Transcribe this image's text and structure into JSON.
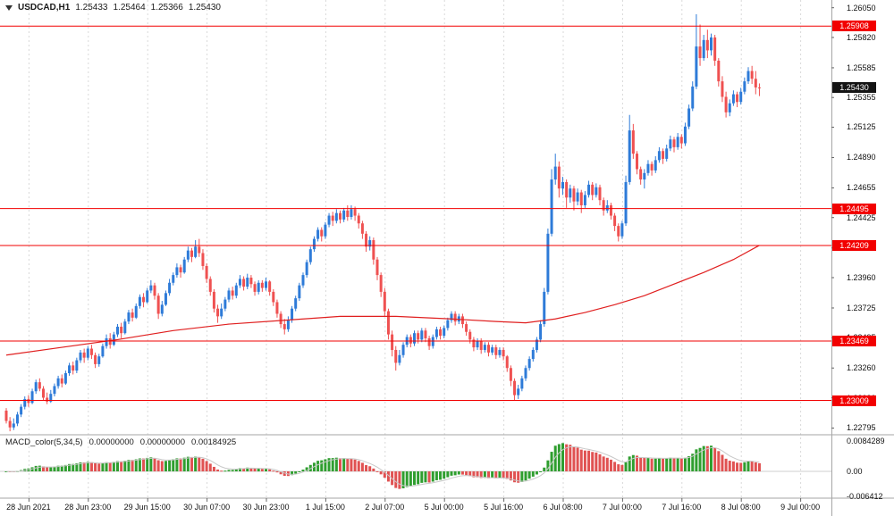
{
  "header": {
    "symbol_period": "USDCAD,H1",
    "open": "1.25433",
    "high": "1.25464",
    "low": "1.25366",
    "close": "1.25430"
  },
  "price_axis": {
    "ticks": [
      "1.26050",
      "1.25820",
      "1.25585",
      "1.25355",
      "1.25125",
      "1.24890",
      "1.24655",
      "1.24425",
      "1.24190",
      "1.23960",
      "1.23725",
      "1.23495",
      "1.23260",
      "1.23030",
      "1.22795"
    ],
    "current_price": 1.2543,
    "current_price_label": "1.25430"
  },
  "time_axis": {
    "labels": [
      {
        "text": "28 Jun 2021",
        "candle_index": 6
      },
      {
        "text": "28 Jun 23:00",
        "candle_index": 22
      },
      {
        "text": "29 Jun 15:00",
        "candle_index": 38
      },
      {
        "text": "30 Jun 07:00",
        "candle_index": 54
      },
      {
        "text": "30 Jun 23:00",
        "candle_index": 70
      },
      {
        "text": "1 Jul 15:00",
        "candle_index": 86
      },
      {
        "text": "2 Jul 07:00",
        "candle_index": 102
      },
      {
        "text": "5 Jul 00:00",
        "candle_index": 118
      },
      {
        "text": "5 Jul 16:00",
        "candle_index": 134
      },
      {
        "text": "6 Jul 08:00",
        "candle_index": 150
      },
      {
        "text": "7 Jul 00:00",
        "candle_index": 166
      },
      {
        "text": "7 Jul 16:00",
        "candle_index": 182
      },
      {
        "text": "8 Jul 08:00",
        "candle_index": 198
      },
      {
        "text": "9 Jul 00:00",
        "candle_index": 214
      }
    ]
  },
  "macd": {
    "name": "MACD_color(5,34,5)",
    "values": [
      "0.00000000",
      "0.00000000",
      "0.00184925"
    ],
    "fast": 5,
    "slow": 34,
    "signal": 5,
    "axis_max": 0.0084289,
    "axis_min": -0.006412,
    "axis_max_label": "0.0084289",
    "axis_zero_label": "0.00",
    "axis_min_label": "-0.006412"
  },
  "colors": {
    "background": "#ffffff",
    "bull": "#2e7bd8",
    "bear": "#ef5151",
    "level_line": "#f20000",
    "level_tag_bg": "#f20000",
    "current_tag_bg": "#141414",
    "ma_line": "#e01f1f",
    "macd_up": "#2f9e2f",
    "macd_down": "#e05252",
    "macd_signal": "#c8c8c8",
    "grid": "#d9d9d9",
    "panel_border": "#a6a6a6",
    "axis_text": "#111111"
  },
  "chart_data": {
    "type": "candlestick",
    "title": "USDCAD H1",
    "symbol": "USDCAD",
    "timeframe": "H1",
    "visible_price_range": [
      1.22795,
      1.2605
    ],
    "price_levels": [
      {
        "value": 1.25908,
        "label": "1.25908"
      },
      {
        "value": 1.24495,
        "label": "1.24495"
      },
      {
        "value": 1.24209,
        "label": "1.24209"
      },
      {
        "value": 1.23469,
        "label": "1.23469"
      },
      {
        "value": 1.23009,
        "label": "1.23009"
      }
    ],
    "candles": [
      [
        1.2293,
        1.2295,
        1.2283,
        1.2285
      ],
      [
        1.2285,
        1.2288,
        1.2277,
        1.228
      ],
      [
        1.228,
        1.2287,
        1.2278,
        1.2283
      ],
      [
        1.2283,
        1.2292,
        1.2281,
        1.229
      ],
      [
        1.229,
        1.2298,
        1.2288,
        1.2296
      ],
      [
        1.2296,
        1.2304,
        1.2294,
        1.2302
      ],
      [
        1.2302,
        1.2305,
        1.2296,
        1.2299
      ],
      [
        1.2299,
        1.231,
        1.2298,
        1.2308
      ],
      [
        1.2308,
        1.2317,
        1.2306,
        1.2315
      ],
      [
        1.2315,
        1.2318,
        1.2308,
        1.231
      ],
      [
        1.231,
        1.2312,
        1.2301,
        1.2303
      ],
      [
        1.2303,
        1.2307,
        1.2298,
        1.23
      ],
      [
        1.23,
        1.2309,
        1.2299,
        1.2306
      ],
      [
        1.2306,
        1.2314,
        1.2304,
        1.2312
      ],
      [
        1.2312,
        1.232,
        1.231,
        1.2318
      ],
      [
        1.2318,
        1.2321,
        1.2311,
        1.2314
      ],
      [
        1.2314,
        1.2324,
        1.2313,
        1.2322
      ],
      [
        1.2322,
        1.233,
        1.232,
        1.2328
      ],
      [
        1.2328,
        1.2331,
        1.2321,
        1.2324
      ],
      [
        1.2324,
        1.2334,
        1.2322,
        1.2332
      ],
      [
        1.2332,
        1.234,
        1.233,
        1.2338
      ],
      [
        1.2338,
        1.2341,
        1.233,
        1.2334
      ],
      [
        1.2334,
        1.2343,
        1.2332,
        1.2341
      ],
      [
        1.2341,
        1.2344,
        1.2333,
        1.2336
      ],
      [
        1.2336,
        1.2338,
        1.2326,
        1.2329
      ],
      [
        1.2329,
        1.2337,
        1.2327,
        1.2335
      ],
      [
        1.2335,
        1.2345,
        1.2334,
        1.2343
      ],
      [
        1.2343,
        1.2352,
        1.2341,
        1.2349
      ],
      [
        1.2349,
        1.2353,
        1.2341,
        1.2344
      ],
      [
        1.2344,
        1.2354,
        1.2343,
        1.2352
      ],
      [
        1.2352,
        1.236,
        1.235,
        1.2358
      ],
      [
        1.2358,
        1.2361,
        1.2349,
        1.2353
      ],
      [
        1.2353,
        1.2364,
        1.2352,
        1.2362
      ],
      [
        1.2362,
        1.2371,
        1.236,
        1.2369
      ],
      [
        1.2369,
        1.2372,
        1.2362,
        1.2365
      ],
      [
        1.2365,
        1.2376,
        1.2364,
        1.2374
      ],
      [
        1.2374,
        1.2383,
        1.2372,
        1.2381
      ],
      [
        1.2381,
        1.2384,
        1.2373,
        1.2377
      ],
      [
        1.2377,
        1.2388,
        1.2376,
        1.2386
      ],
      [
        1.2386,
        1.2394,
        1.2384,
        1.239
      ],
      [
        1.239,
        1.2392,
        1.2379,
        1.2382
      ],
      [
        1.2382,
        1.2384,
        1.2364,
        1.2368
      ],
      [
        1.2368,
        1.2378,
        1.2366,
        1.2375
      ],
      [
        1.2375,
        1.2386,
        1.2374,
        1.2384
      ],
      [
        1.2384,
        1.2395,
        1.2382,
        1.2392
      ],
      [
        1.2392,
        1.24,
        1.239,
        1.2398
      ],
      [
        1.2398,
        1.2407,
        1.2396,
        1.2404
      ],
      [
        1.2404,
        1.2406,
        1.2396,
        1.24
      ],
      [
        1.24,
        1.2412,
        1.2399,
        1.241
      ],
      [
        1.241,
        1.242,
        1.2408,
        1.2417
      ],
      [
        1.2417,
        1.2419,
        1.2408,
        1.2412
      ],
      [
        1.2412,
        1.2425,
        1.2411,
        1.242
      ],
      [
        1.242,
        1.2426,
        1.2412,
        1.2415
      ],
      [
        1.2415,
        1.2418,
        1.2402,
        1.2405
      ],
      [
        1.2405,
        1.2407,
        1.2392,
        1.2395
      ],
      [
        1.2395,
        1.2397,
        1.2382,
        1.2385
      ],
      [
        1.2385,
        1.2387,
        1.2369,
        1.2372
      ],
      [
        1.2372,
        1.2375,
        1.2361,
        1.2366
      ],
      [
        1.2366,
        1.2376,
        1.2364,
        1.2372
      ],
      [
        1.2372,
        1.2381,
        1.237,
        1.2379
      ],
      [
        1.2379,
        1.2388,
        1.2377,
        1.2386
      ],
      [
        1.2386,
        1.2389,
        1.2379,
        1.2382
      ],
      [
        1.2382,
        1.2392,
        1.238,
        1.239
      ],
      [
        1.239,
        1.2398,
        1.2388,
        1.2395
      ],
      [
        1.2395,
        1.2397,
        1.2386,
        1.2389
      ],
      [
        1.2389,
        1.2399,
        1.2387,
        1.2396
      ],
      [
        1.2396,
        1.2398,
        1.2388,
        1.2391
      ],
      [
        1.2391,
        1.2393,
        1.2382,
        1.2385
      ],
      [
        1.2385,
        1.2394,
        1.2383,
        1.2392
      ],
      [
        1.2392,
        1.2394,
        1.2385,
        1.2388
      ],
      [
        1.2388,
        1.2396,
        1.2386,
        1.2393
      ],
      [
        1.2393,
        1.2394,
        1.2382,
        1.2385
      ],
      [
        1.2385,
        1.2387,
        1.2374,
        1.2377
      ],
      [
        1.2377,
        1.2379,
        1.2365,
        1.2368
      ],
      [
        1.2368,
        1.237,
        1.2357,
        1.236
      ],
      [
        1.236,
        1.2364,
        1.2352,
        1.2356
      ],
      [
        1.2356,
        1.2366,
        1.2354,
        1.2363
      ],
      [
        1.2363,
        1.2374,
        1.2361,
        1.2372
      ],
      [
        1.2372,
        1.2382,
        1.237,
        1.238
      ],
      [
        1.238,
        1.2392,
        1.2378,
        1.239
      ],
      [
        1.239,
        1.24,
        1.2388,
        1.2398
      ],
      [
        1.2398,
        1.241,
        1.2396,
        1.2408
      ],
      [
        1.2408,
        1.242,
        1.2406,
        1.2418
      ],
      [
        1.2418,
        1.2428,
        1.2416,
        1.2426
      ],
      [
        1.2426,
        1.2435,
        1.2424,
        1.2433
      ],
      [
        1.2433,
        1.2435,
        1.2424,
        1.2428
      ],
      [
        1.2428,
        1.2439,
        1.2426,
        1.2437
      ],
      [
        1.2437,
        1.2446,
        1.2435,
        1.2444
      ],
      [
        1.2444,
        1.2447,
        1.2436,
        1.244
      ],
      [
        1.244,
        1.2449,
        1.2438,
        1.2446
      ],
      [
        1.2446,
        1.2448,
        1.2438,
        1.2441
      ],
      [
        1.2441,
        1.245,
        1.2439,
        1.2448
      ],
      [
        1.2448,
        1.2452,
        1.244,
        1.2443
      ],
      [
        1.2443,
        1.2452,
        1.2441,
        1.2449
      ],
      [
        1.2449,
        1.2451,
        1.244,
        1.2444
      ],
      [
        1.2444,
        1.2446,
        1.2434,
        1.2438
      ],
      [
        1.2438,
        1.244,
        1.2426,
        1.243
      ],
      [
        1.243,
        1.2432,
        1.2416,
        1.242
      ],
      [
        1.242,
        1.2428,
        1.2417,
        1.2425
      ],
      [
        1.2425,
        1.2427,
        1.2406,
        1.241
      ],
      [
        1.241,
        1.2412,
        1.2394,
        1.2398
      ],
      [
        1.2398,
        1.24,
        1.2381,
        1.2385
      ],
      [
        1.2385,
        1.2388,
        1.2366,
        1.237
      ],
      [
        1.237,
        1.2372,
        1.2348,
        1.2352
      ],
      [
        1.2352,
        1.2355,
        1.2335,
        1.234
      ],
      [
        1.234,
        1.2343,
        1.2324,
        1.233
      ],
      [
        1.233,
        1.234,
        1.2328,
        1.2336
      ],
      [
        1.2336,
        1.2346,
        1.2334,
        1.2344
      ],
      [
        1.2344,
        1.2352,
        1.2342,
        1.235
      ],
      [
        1.235,
        1.2352,
        1.2342,
        1.2345
      ],
      [
        1.2345,
        1.2355,
        1.2343,
        1.2353
      ],
      [
        1.2353,
        1.2355,
        1.2345,
        1.2348
      ],
      [
        1.2348,
        1.2357,
        1.2346,
        1.2355
      ],
      [
        1.2355,
        1.2357,
        1.2346,
        1.2349
      ],
      [
        1.2349,
        1.2351,
        1.234,
        1.2343
      ],
      [
        1.2343,
        1.2352,
        1.2341,
        1.235
      ],
      [
        1.235,
        1.2358,
        1.2348,
        1.2356
      ],
      [
        1.2356,
        1.2358,
        1.2348,
        1.2351
      ],
      [
        1.2351,
        1.2359,
        1.2349,
        1.2357
      ],
      [
        1.2357,
        1.2365,
        1.2355,
        1.2363
      ],
      [
        1.2363,
        1.237,
        1.2361,
        1.2368
      ],
      [
        1.2368,
        1.237,
        1.2359,
        1.2362
      ],
      [
        1.2362,
        1.2368,
        1.236,
        1.2366
      ],
      [
        1.2366,
        1.2368,
        1.2357,
        1.236
      ],
      [
        1.236,
        1.2362,
        1.2351,
        1.2354
      ],
      [
        1.2354,
        1.2356,
        1.2345,
        1.2348
      ],
      [
        1.2348,
        1.235,
        1.2339,
        1.2342
      ],
      [
        1.2342,
        1.2349,
        1.234,
        1.2347
      ],
      [
        1.2347,
        1.2349,
        1.2337,
        1.234
      ],
      [
        1.234,
        1.2346,
        1.2338,
        1.2344
      ],
      [
        1.2344,
        1.2346,
        1.2335,
        1.2338
      ],
      [
        1.2338,
        1.2344,
        1.2336,
        1.2342
      ],
      [
        1.2342,
        1.2344,
        1.2333,
        1.2336
      ],
      [
        1.2336,
        1.2342,
        1.2334,
        1.234
      ],
      [
        1.234,
        1.2342,
        1.2332,
        1.2335
      ],
      [
        1.2335,
        1.2336,
        1.2323,
        1.2326
      ],
      [
        1.2326,
        1.2328,
        1.2312,
        1.2316
      ],
      [
        1.2316,
        1.2318,
        1.2301,
        1.2305
      ],
      [
        1.2305,
        1.2313,
        1.2302,
        1.231
      ],
      [
        1.231,
        1.232,
        1.2308,
        1.2318
      ],
      [
        1.2318,
        1.2328,
        1.2316,
        1.2326
      ],
      [
        1.2326,
        1.2335,
        1.2324,
        1.2333
      ],
      [
        1.2333,
        1.2342,
        1.2331,
        1.234
      ],
      [
        1.234,
        1.235,
        1.2338,
        1.2348
      ],
      [
        1.2348,
        1.2363,
        1.2346,
        1.236
      ],
      [
        1.236,
        1.2388,
        1.2358,
        1.2385
      ],
      [
        1.2385,
        1.2434,
        1.2383,
        1.243
      ],
      [
        1.243,
        1.248,
        1.2428,
        1.2472
      ],
      [
        1.2472,
        1.2492,
        1.2468,
        1.2482
      ],
      [
        1.2482,
        1.2486,
        1.2458,
        1.2465
      ],
      [
        1.2465,
        1.2474,
        1.246,
        1.247
      ],
      [
        1.247,
        1.2472,
        1.245,
        1.2458
      ],
      [
        1.2458,
        1.2468,
        1.2454,
        1.2465
      ],
      [
        1.2465,
        1.2467,
        1.2448,
        1.2455
      ],
      [
        1.2455,
        1.2465,
        1.2452,
        1.2462
      ],
      [
        1.2462,
        1.2464,
        1.2446,
        1.2452
      ],
      [
        1.2452,
        1.2463,
        1.245,
        1.246
      ],
      [
        1.246,
        1.2471,
        1.2458,
        1.2468
      ],
      [
        1.2468,
        1.247,
        1.2456,
        1.246
      ],
      [
        1.246,
        1.2469,
        1.2458,
        1.2466
      ],
      [
        1.2466,
        1.2468,
        1.2452,
        1.2456
      ],
      [
        1.2456,
        1.2458,
        1.2444,
        1.2448
      ],
      [
        1.2448,
        1.2456,
        1.2446,
        1.2452
      ],
      [
        1.2452,
        1.2454,
        1.2441,
        1.2444
      ],
      [
        1.2444,
        1.2446,
        1.2432,
        1.2436
      ],
      [
        1.2436,
        1.2438,
        1.2424,
        1.2428
      ],
      [
        1.2428,
        1.244,
        1.2426,
        1.2438
      ],
      [
        1.2438,
        1.2475,
        1.2436,
        1.247
      ],
      [
        1.247,
        1.2522,
        1.2468,
        1.251
      ],
      [
        1.251,
        1.2515,
        1.2488,
        1.2492
      ],
      [
        1.2492,
        1.2494,
        1.2476,
        1.248
      ],
      [
        1.248,
        1.2482,
        1.2468,
        1.2472
      ],
      [
        1.2472,
        1.248,
        1.2465,
        1.2477
      ],
      [
        1.2477,
        1.2487,
        1.2475,
        1.2484
      ],
      [
        1.2484,
        1.2486,
        1.2475,
        1.2479
      ],
      [
        1.2479,
        1.249,
        1.2477,
        1.2487
      ],
      [
        1.2487,
        1.2497,
        1.2485,
        1.2494
      ],
      [
        1.2494,
        1.2496,
        1.2484,
        1.2488
      ],
      [
        1.2488,
        1.2499,
        1.2486,
        1.2496
      ],
      [
        1.2496,
        1.2506,
        1.2494,
        1.2503
      ],
      [
        1.2503,
        1.2505,
        1.2493,
        1.2497
      ],
      [
        1.2497,
        1.2508,
        1.2495,
        1.2505
      ],
      [
        1.2505,
        1.2507,
        1.2496,
        1.25
      ],
      [
        1.25,
        1.2516,
        1.2498,
        1.2513
      ],
      [
        1.2513,
        1.253,
        1.2511,
        1.2527
      ],
      [
        1.2527,
        1.2548,
        1.2525,
        1.2544
      ],
      [
        1.2544,
        1.26,
        1.2542,
        1.2575
      ],
      [
        1.2575,
        1.2592,
        1.256,
        1.2566
      ],
      [
        1.2566,
        1.2584,
        1.2564,
        1.258
      ],
      [
        1.258,
        1.2588,
        1.2566,
        1.2572
      ],
      [
        1.2572,
        1.2585,
        1.2568,
        1.2582
      ],
      [
        1.2582,
        1.2584,
        1.256,
        1.2564
      ],
      [
        1.2564,
        1.2566,
        1.2544,
        1.2548
      ],
      [
        1.2548,
        1.2552,
        1.2532,
        1.2536
      ],
      [
        1.2536,
        1.254,
        1.252,
        1.2524
      ],
      [
        1.2524,
        1.2534,
        1.2521,
        1.2531
      ],
      [
        1.2531,
        1.2541,
        1.2529,
        1.2538
      ],
      [
        1.2538,
        1.254,
        1.2528,
        1.2532
      ],
      [
        1.2532,
        1.2543,
        1.253,
        1.254
      ],
      [
        1.254,
        1.2551,
        1.2538,
        1.2548
      ],
      [
        1.2548,
        1.2559,
        1.2546,
        1.2556
      ],
      [
        1.2556,
        1.256,
        1.2546,
        1.255
      ],
      [
        1.255,
        1.2556,
        1.2538,
        1.25433
      ],
      [
        1.25433,
        1.25464,
        1.25366,
        1.2543
      ]
    ],
    "ma_line": [
      [
        0,
        1.2336
      ],
      [
        15,
        1.2342
      ],
      [
        30,
        1.2348
      ],
      [
        45,
        1.2355
      ],
      [
        60,
        1.236
      ],
      [
        75,
        1.2363
      ],
      [
        90,
        1.2366
      ],
      [
        105,
        1.2366
      ],
      [
        120,
        1.2364
      ],
      [
        132,
        1.2362
      ],
      [
        140,
        1.2361
      ],
      [
        148,
        1.2364
      ],
      [
        156,
        1.2369
      ],
      [
        164,
        1.2375
      ],
      [
        172,
        1.2382
      ],
      [
        180,
        1.2391
      ],
      [
        188,
        1.24
      ],
      [
        196,
        1.241
      ],
      [
        203,
        1.2421
      ]
    ]
  }
}
